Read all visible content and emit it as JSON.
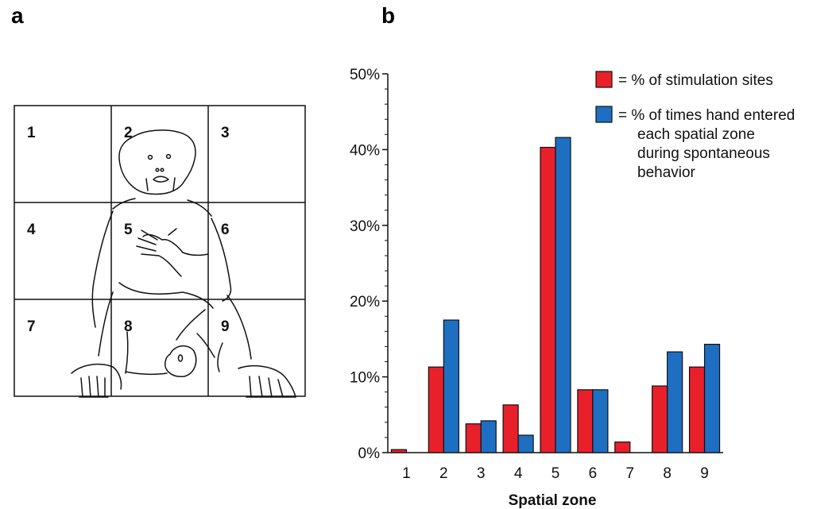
{
  "panels": {
    "a": "a",
    "b": "b"
  },
  "grid_zones": [
    "1",
    "2",
    "3",
    "4",
    "5",
    "6",
    "7",
    "8",
    "9"
  ],
  "colors": {
    "stim": "#e8202a",
    "hand": "#1e6fc1"
  },
  "chart_data": {
    "type": "bar",
    "categories": [
      "1",
      "2",
      "3",
      "4",
      "5",
      "6",
      "7",
      "8",
      "9"
    ],
    "series": [
      {
        "name": "= % of stimulation sites",
        "values": [
          0.4,
          11.3,
          3.8,
          6.3,
          40.3,
          8.3,
          1.4,
          8.8,
          11.3
        ]
      },
      {
        "name": "= % of times hand entered each spatial zone during spontaneous behavior",
        "values": [
          0,
          17.5,
          4.2,
          2.3,
          41.6,
          8.3,
          0,
          13.3,
          14.3
        ]
      }
    ],
    "legend_lines": [
      [
        "= % of stimulation sites"
      ],
      [
        "= % of times hand entered",
        "each spatial zone",
        "during spontaneous",
        "behavior"
      ]
    ],
    "xlabel": "Spatial zone",
    "ylabel": "",
    "ylim": [
      0,
      50
    ],
    "yticks": [
      "0%",
      "10%",
      "20%",
      "30%",
      "40%",
      "50%"
    ],
    "legend_position": "top-right"
  }
}
